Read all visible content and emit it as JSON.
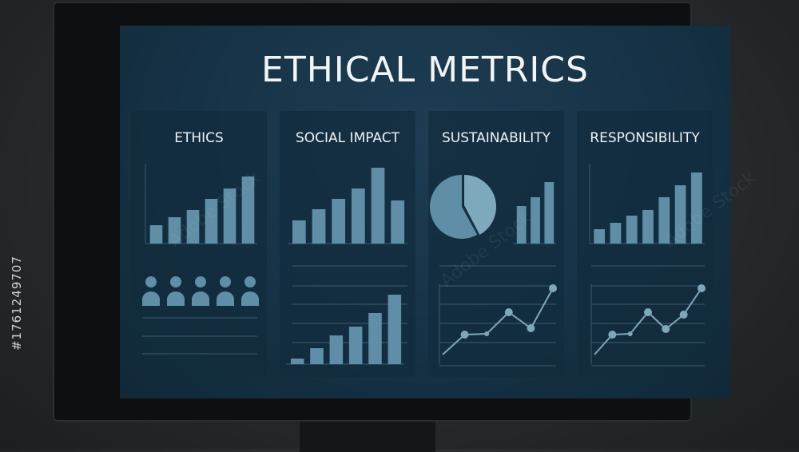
{
  "title": "ETHICAL METRICS",
  "watermark": "Adobe Stock",
  "stock_id": "#1761249707",
  "colors": {
    "bar": "#5f8ea6",
    "pie_light": "#7ea9bd",
    "line": "#7fa6ba",
    "grid": "#3b5c70",
    "text": "#eef3f6"
  },
  "panels": [
    {
      "title": "ETHICS",
      "icons": "people-icons"
    },
    {
      "title": "SOCIAL IMPACT"
    },
    {
      "title": "SUSTAINABILITY"
    },
    {
      "title": "RESPONSIBILITY"
    }
  ],
  "chart_data": [
    {
      "panel": "ETHICS",
      "type": "bar",
      "values": [
        23,
        33,
        42,
        56,
        69,
        84
      ],
      "ylim": [
        0,
        100
      ]
    },
    {
      "panel": "ETHICS",
      "type": "pictogram",
      "count": 5
    },
    {
      "panel": "SOCIAL IMPACT",
      "type": "bar",
      "values": [
        29,
        43,
        56,
        69,
        95,
        54
      ],
      "ylim": [
        0,
        100
      ]
    },
    {
      "panel": "SOCIAL IMPACT",
      "type": "bar",
      "values": [
        7,
        20,
        36,
        47,
        64,
        87
      ],
      "ylim": [
        0,
        100
      ]
    },
    {
      "panel": "SUSTAINABILITY",
      "type": "pie",
      "values": [
        58,
        42
      ]
    },
    {
      "panel": "SUSTAINABILITY",
      "type": "bar",
      "values": [
        47,
        58,
        77
      ],
      "ylim": [
        0,
        100
      ]
    },
    {
      "panel": "SUSTAINABILITY",
      "type": "line",
      "values": [
        12,
        37,
        38,
        65,
        45,
        95
      ],
      "ylim": [
        0,
        100
      ]
    },
    {
      "panel": "RESPONSIBILITY",
      "type": "bar",
      "values": [
        18,
        26,
        35,
        42,
        58,
        73,
        89
      ],
      "ylim": [
        0,
        100
      ]
    },
    {
      "panel": "RESPONSIBILITY",
      "type": "line",
      "values": [
        12,
        37,
        38,
        65,
        44,
        62,
        95
      ],
      "ylim": [
        0,
        100
      ]
    }
  ]
}
